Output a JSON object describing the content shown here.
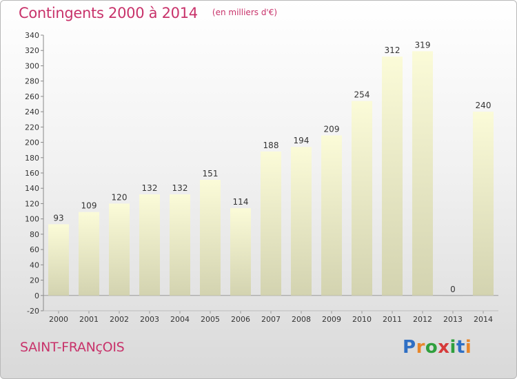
{
  "header": {
    "title": "Contingents 2000 à 2014",
    "unit": "(en milliers d'€)"
  },
  "footer": {
    "place": "SAINT-FRANçOIS",
    "logo": {
      "p": "P",
      "r": "r",
      "o": "o",
      "x": "x",
      "i": "i",
      "t": "t",
      "i2": "i"
    }
  },
  "colors": {
    "accent": "#c8326a",
    "bar_top": "#fbfbd8",
    "bar_bottom": "#d3d3b0",
    "axis_text": "#333333"
  },
  "chart_data": {
    "type": "bar",
    "categories": [
      "2000",
      "2001",
      "2002",
      "2003",
      "2004",
      "2005",
      "2006",
      "2007",
      "2008",
      "2009",
      "2010",
      "2011",
      "2012",
      "2013",
      "2014"
    ],
    "values": [
      93,
      109,
      120,
      132,
      132,
      151,
      114,
      188,
      194,
      209,
      254,
      312,
      319,
      0,
      240
    ],
    "data_labels": [
      "93",
      "109",
      "120",
      "132",
      "132",
      "151",
      "114",
      "188",
      "194",
      "209",
      "254",
      "312",
      "319",
      "0",
      "240"
    ],
    "ylim": [
      -20,
      340
    ],
    "ytick_step": 20,
    "yticks": [
      "-20",
      "0",
      "20",
      "40",
      "60",
      "80",
      "100",
      "120",
      "140",
      "160",
      "180",
      "200",
      "220",
      "240",
      "260",
      "280",
      "300",
      "320",
      "340"
    ],
    "grid": false,
    "legend": "none",
    "title": "Contingents 2000 à 2014",
    "xlabel": "",
    "ylabel": ""
  }
}
